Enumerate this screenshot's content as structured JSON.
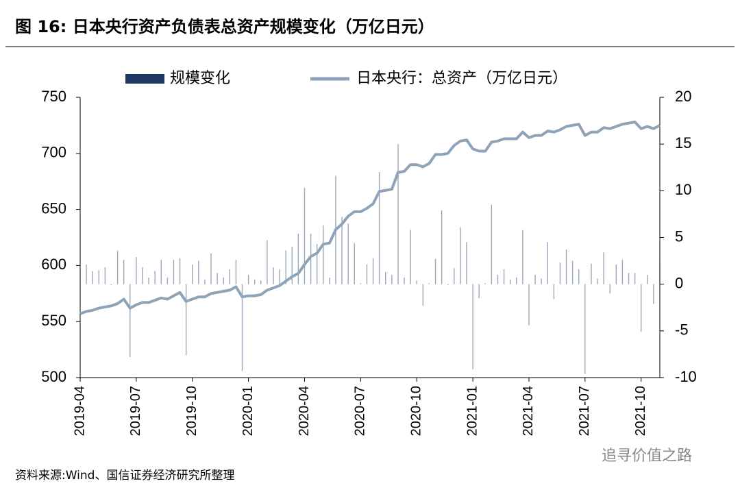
{
  "chart_data": {
    "type": "bar-line",
    "title": "图 16: 日本央行资产负债表总资产规模变化（万亿日元）",
    "source": "资料来源:Wind、国信证券经济研究所整理",
    "watermark": "追寻价值之路",
    "categories": [
      "2019-04",
      null,
      null,
      null,
      null,
      null,
      null,
      null,
      null,
      "2019-07",
      null,
      null,
      null,
      null,
      null,
      null,
      null,
      null,
      "2019-10",
      null,
      null,
      null,
      null,
      null,
      null,
      null,
      null,
      "2020-01",
      null,
      null,
      null,
      null,
      null,
      null,
      null,
      null,
      "2020-04",
      null,
      null,
      null,
      null,
      null,
      null,
      null,
      null,
      "2020-07",
      null,
      null,
      null,
      null,
      null,
      null,
      null,
      null,
      "2020-10",
      null,
      null,
      null,
      null,
      null,
      null,
      null,
      null,
      "2021-01",
      null,
      null,
      null,
      null,
      null,
      null,
      null,
      null,
      "2021-04",
      null,
      null,
      null,
      null,
      null,
      null,
      null,
      null,
      "2021-07",
      null,
      null,
      null,
      null,
      null,
      null,
      null,
      null,
      "2021-10",
      null,
      null,
      null
    ],
    "series": [
      {
        "name": "规模变化",
        "type": "bar",
        "axis": "y2",
        "color": "#1f3864",
        "values": [
          null,
          2.1,
          1.4,
          1.5,
          1.8,
          -0.1,
          3.6,
          2.6,
          -7.8,
          2.9,
          1.8,
          0.7,
          1.4,
          2.6,
          0.7,
          2.6,
          2.8,
          -7.6,
          2.1,
          2.5,
          0.5,
          3.3,
          1.2,
          0.7,
          1.6,
          2.6,
          -9.3,
          1.0,
          0.5,
          0.4,
          4.7,
          1.8,
          1.6,
          3.6,
          4.0,
          5.4,
          10.3,
          5.4,
          4.3,
          6.3,
          0.7,
          11.6,
          7.2,
          6.5,
          4.4,
          0.1,
          2.1,
          2.8,
          12.0,
          1.3,
          1.0,
          15.0,
          0.7,
          5.8,
          0.4,
          -2.3,
          0.1,
          2.7,
          7.9,
          -0.1,
          1.7,
          6.1,
          4.5,
          -9.1,
          -1.5,
          0.1,
          8.5,
          1.0,
          1.6,
          0.5,
          0.7,
          5.8,
          -4.4,
          1.0,
          0.6,
          4.5,
          -1.6,
          2.3,
          3.7,
          2.5,
          1.6,
          -9.6,
          2.2,
          0.6,
          3.4,
          -1.0,
          2.1,
          2.6,
          1.2,
          1.2,
          -5.1,
          1.0,
          -2.1,
          2.6
        ]
      },
      {
        "name": "日本央行：总资产（万亿日元）",
        "type": "line",
        "color": "#8fa3b8",
        "values": [
          557,
          559,
          560,
          562,
          563,
          564,
          566,
          570,
          562,
          565,
          567,
          567,
          569,
          571,
          570,
          573,
          576,
          568,
          570,
          572,
          572,
          575,
          576,
          577,
          578,
          581,
          572,
          573,
          573,
          574,
          578,
          580,
          582,
          586,
          590,
          593,
          601,
          608,
          611,
          619,
          620,
          632,
          637,
          644,
          648,
          648,
          651,
          655,
          666,
          667,
          668,
          683,
          684,
          690,
          690,
          688,
          691,
          699,
          699,
          700,
          707,
          711,
          712,
          704,
          702,
          702,
          710,
          711,
          713,
          713,
          713,
          719,
          714,
          716,
          716,
          720,
          719,
          721,
          724,
          725,
          726,
          716,
          719,
          719,
          723,
          722,
          724,
          726,
          727,
          728,
          722,
          724,
          722,
          725
        ]
      }
    ],
    "ylim": [
      500,
      750
    ],
    "yticks": [
      500,
      550,
      600,
      650,
      700,
      750
    ],
    "y2lim": [
      -10,
      20
    ],
    "y2ticks": [
      -10,
      -5,
      0,
      5,
      10,
      15,
      20
    ],
    "legend": "top",
    "grid": false
  }
}
